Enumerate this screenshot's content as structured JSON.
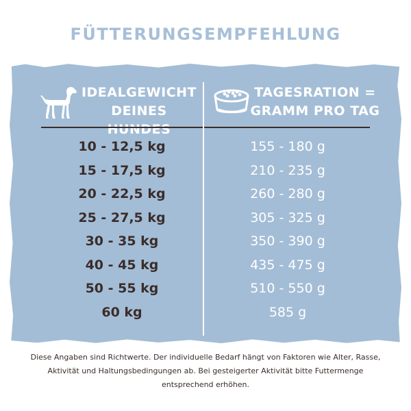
{
  "title": "FÜTTERUNGSEMPFEHLUNG",
  "header": {
    "left_line1": "IDEALGEWICHT",
    "left_line2": "DEINES HUNDES",
    "right_line1": "TAGESRATION =",
    "right_line2": "GRAMM PRO TAG",
    "left_icon": "dog-icon",
    "right_icon": "food-bowl-icon"
  },
  "rows": [
    {
      "weight": "10 - 12,5 kg",
      "grams": "155 - 180 g"
    },
    {
      "weight": "15 - 17,5 kg",
      "grams": "210 - 235 g"
    },
    {
      "weight": "20 - 22,5 kg",
      "grams": "260 - 280 g"
    },
    {
      "weight": "25 - 27,5 kg",
      "grams": "305 - 325 g"
    },
    {
      "weight": "30 - 35 kg",
      "grams": "350 - 390 g"
    },
    {
      "weight": "40 - 45 kg",
      "grams": "435 - 475 g"
    },
    {
      "weight": "50 - 55 kg",
      "grams": "510 - 550 g"
    },
    {
      "weight": "60 kg",
      "grams": "585 g"
    }
  ],
  "footnote": "Diese Angaben sind Richtwerte. Der individuelle Bedarf hängt von Faktoren wie Alter, Rasse, Aktivität und Haltungsbedingungen ab. Bei gesteigerter Aktivität bitte Futtermenge entsprechend erhöhen.",
  "colors": {
    "title": "#a7bfd8",
    "panel": "#a4bdd6",
    "weight_text": "#3a2d2a",
    "gram_text": "#ffffff"
  }
}
